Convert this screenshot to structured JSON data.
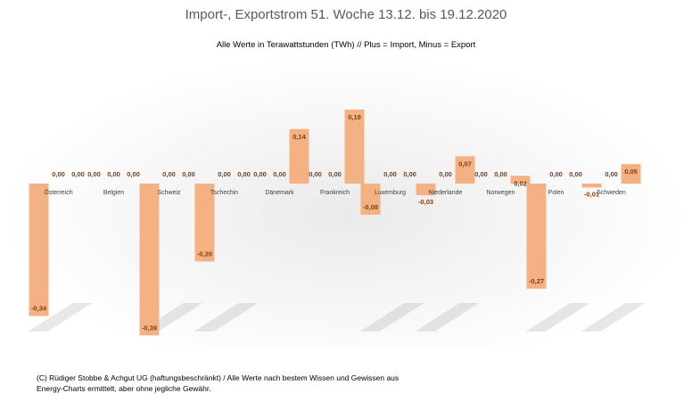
{
  "chart_data": {
    "type": "bar",
    "title": "Import-, Exportstrom 51. Woche 13.12. bis 19.12.2020",
    "subtitle": "Alle Werte in Terawattstunden (TWh) // Plus = Import, Minus = Export",
    "categories": [
      "Österreich",
      "Belgien",
      "Schweiz",
      "Tschechin",
      "Dänemark",
      "Frankreich",
      "Luxemburg",
      "Niederlande",
      "Norwegen",
      "Polen",
      "Schweden"
    ],
    "series": [
      {
        "values": [
          -0.34,
          0.0,
          -0.39,
          -0.2,
          0.0,
          0.0,
          -0.08,
          -0.03,
          0.0,
          -0.27,
          -0.01
        ]
      },
      {
        "values": [
          0.0,
          0.0,
          0.0,
          0.0,
          0.0,
          0.0,
          0.0,
          0.0,
          0.0,
          0.0,
          0.0
        ]
      },
      {
        "values": [
          0.0,
          0.0,
          0.0,
          0.0,
          0.14,
          0.19,
          0.0,
          0.07,
          0.02,
          0.0,
          0.05
        ]
      }
    ],
    "data_labels": [
      [
        "-0,34",
        "0,00",
        "-0,39",
        "-0,20",
        "0,00",
        "0,00",
        "-0,08",
        "-0,03",
        "0,00",
        "-0,27",
        "-0,01"
      ],
      [
        "0,00",
        "0,00",
        "0,00",
        "0,00",
        "0,00",
        "0,00",
        "0,00",
        "0,00",
        "0,00",
        "0,00",
        "0,00"
      ],
      [
        "0,00",
        "0,00",
        "0,00",
        "0,00",
        "0,14",
        "0,19",
        "0,00",
        "0,07",
        "0,02",
        "0,00",
        "0,05"
      ]
    ],
    "ylim": [
      -0.39,
      0.19
    ],
    "legend": "none",
    "grid": false,
    "colors": {
      "bar": "#f4b183",
      "label": "#843c0c",
      "category_label": "#404040"
    }
  },
  "footnote": "(C) Rüdiger Stobbe & Achgut UG (haftungsbeschränkt) / Alle Werte nach bestem Wissen und Gewissen aus Energy-Charts ermittelt, aber ohne jegliche Gewähr."
}
